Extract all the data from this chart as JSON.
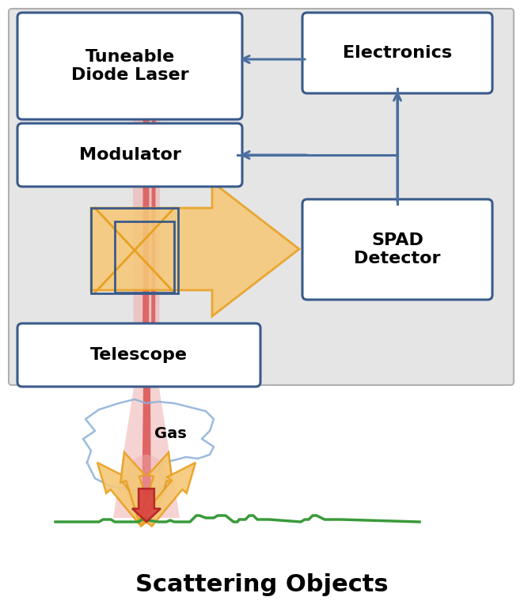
{
  "fig_width": 6.62,
  "fig_height": 7.74,
  "box_color": "#ffffff",
  "box_edge_color": "#3a5a8a",
  "enclosure_color": "#e5e5e5",
  "enclosure_edge": "#b0b0b0",
  "arrow_color": "#4a6fa0",
  "laser_pink": "#f0b0b0",
  "laser_red": "#d84040",
  "orange_fill": "#f5c878",
  "orange_edge": "#e8a020",
  "green_color": "#3a9a3a",
  "gas_line_color": "#8ab0d8",
  "labels": {
    "laser": "Tuneable\nDiode Laser",
    "electronics": "Electronics",
    "modulator": "Modulator",
    "spad": "SPAD\nDetector",
    "telescope": "Telescope",
    "gas": "Gas",
    "scattering": "Scattering Objects"
  }
}
